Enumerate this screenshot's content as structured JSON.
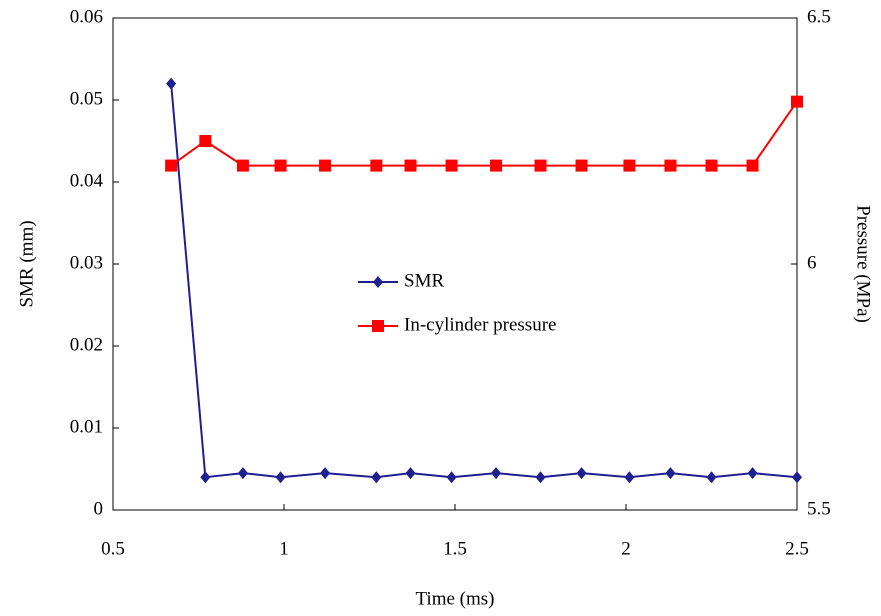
{
  "chart_data": {
    "type": "line",
    "x_label": "Time (ms)",
    "y_label": "SMR (mm)",
    "y2_label": "Pressure (MPa)",
    "x": [
      0.67,
      0.77,
      0.88,
      0.99,
      1.12,
      1.27,
      1.37,
      1.49,
      1.62,
      1.75,
      1.87,
      2.01,
      2.13,
      2.25,
      2.37,
      2.5
    ],
    "series": [
      {
        "name": "SMR",
        "color": "#1f1f8f",
        "marker": "diamond",
        "values": [
          0.052,
          0.004,
          0.0045,
          0.004,
          0.0045,
          0.004,
          0.0045,
          0.004,
          0.0045,
          0.004,
          0.0045,
          0.004,
          0.0045,
          0.004,
          0.0045,
          0.004
        ]
      },
      {
        "name": "In-cylinder pressure",
        "color": "#ff0000",
        "marker": "square",
        "axis": "y2",
        "values": [
          6.2,
          6.25,
          6.2,
          6.2,
          6.2,
          6.2,
          6.2,
          6.2,
          6.2,
          6.2,
          6.2,
          6.2,
          6.2,
          6.2,
          6.2,
          6.33
        ]
      }
    ],
    "xlim": [
      0.5,
      2.5
    ],
    "xticks": [
      0.5,
      1,
      1.5,
      2,
      2.5
    ],
    "ylim": [
      0,
      0.06
    ],
    "yticks": [
      0,
      0.01,
      0.02,
      0.03,
      0.04,
      0.05,
      0.06
    ],
    "y2lim": [
      5.5,
      6.5
    ],
    "y2ticks": [
      5.5,
      6,
      6.5
    ],
    "legend": "center"
  }
}
